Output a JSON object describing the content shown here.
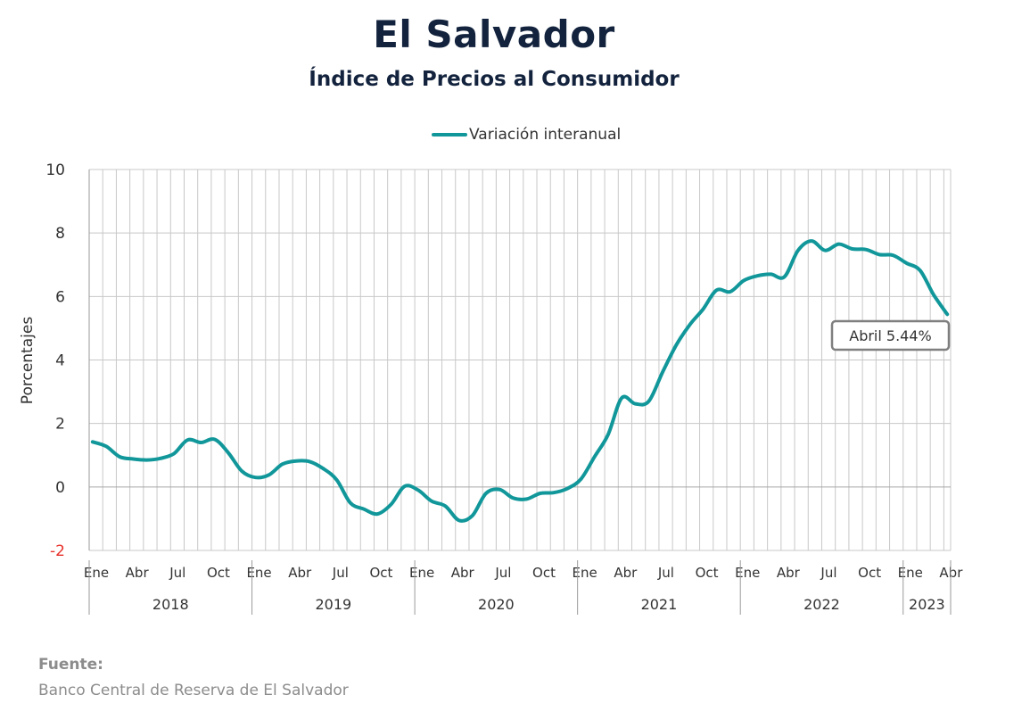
{
  "header": {
    "title": "El Salvador",
    "subtitle": "Índice de Precios al Consumidor"
  },
  "source": {
    "label": "Fuente:",
    "text": "Banco Central de Reserva de El Salvador"
  },
  "colors": {
    "series": "#11979a",
    "negative_tick": "#e8302a",
    "grid": "#c8c8c8",
    "zero_line": "#a6a6a6",
    "title": "#13233d"
  },
  "chart_data": {
    "type": "line",
    "title": "El Salvador",
    "subtitle": "Índice de Precios al Consumidor",
    "ylabel": "Porcentajes",
    "ylim": [
      -2,
      10
    ],
    "yticks": [
      "10",
      "8",
      "6",
      "4",
      "2",
      "0",
      "-2"
    ],
    "grid": true,
    "legend_position": "top",
    "x_start": "2018-01",
    "x_end": "2023-04",
    "month_tick_labels": [
      "Ene",
      "Abr",
      "Jul",
      "Oct"
    ],
    "years": [
      {
        "label": "2018",
        "months": 12
      },
      {
        "label": "2019",
        "months": 12
      },
      {
        "label": "2020",
        "months": 12
      },
      {
        "label": "2021",
        "months": 12
      },
      {
        "label": "2022",
        "months": 12
      },
      {
        "label": "2023",
        "months": 4
      }
    ],
    "x_tick_labels": [
      "Ene",
      "Abr",
      "Jul",
      "Oct",
      "Ene",
      "Abr",
      "Jul",
      "Oct",
      "Ene",
      "Abr",
      "Jul",
      "Oct",
      "Ene",
      "Abr",
      "Jul",
      "Oct",
      "Ene",
      "Abr",
      "Jul",
      "Oct",
      "Ene",
      "Abr"
    ],
    "series": [
      {
        "name": "Variación interanual",
        "values": [
          1.42,
          1.28,
          0.95,
          0.88,
          0.85,
          0.9,
          1.05,
          1.48,
          1.4,
          1.5,
          1.08,
          0.5,
          0.3,
          0.38,
          0.72,
          0.82,
          0.8,
          0.58,
          0.22,
          -0.5,
          -0.7,
          -0.85,
          -0.55,
          0.02,
          -0.1,
          -0.45,
          -0.6,
          -1.05,
          -0.9,
          -0.2,
          -0.08,
          -0.35,
          -0.38,
          -0.2,
          -0.18,
          -0.05,
          0.25,
          0.95,
          1.65,
          2.8,
          2.62,
          2.7,
          3.6,
          4.45,
          5.1,
          5.6,
          6.2,
          6.15,
          6.5,
          6.65,
          6.7,
          6.62,
          7.45,
          7.75,
          7.45,
          7.65,
          7.5,
          7.48,
          7.32,
          7.3,
          7.05,
          6.82,
          6.05,
          5.44
        ]
      }
    ],
    "annotation": {
      "text": "Abril 5.44%",
      "value": 5.44,
      "month": "2023-04"
    }
  }
}
